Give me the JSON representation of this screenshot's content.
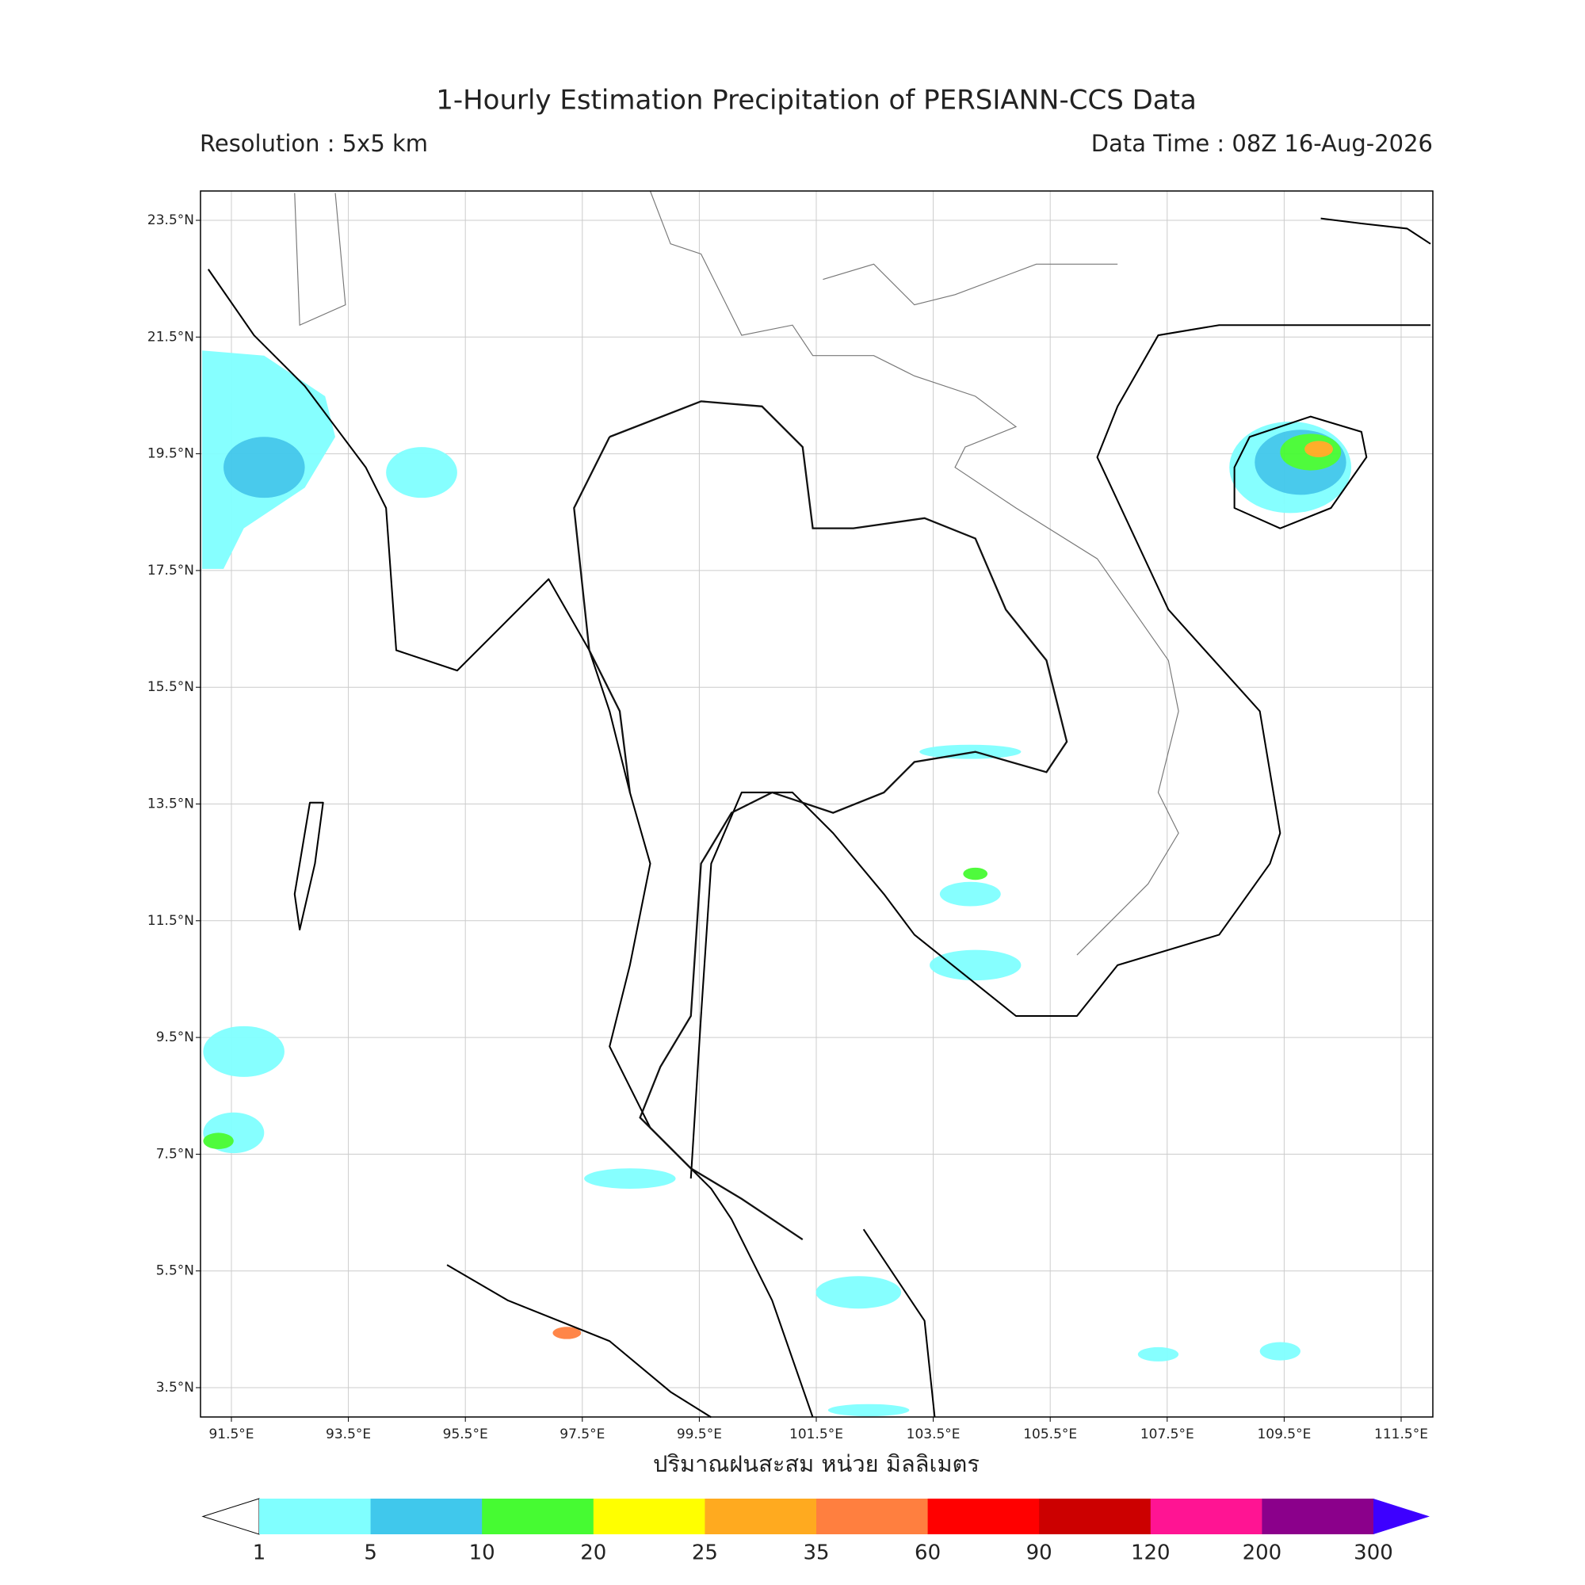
{
  "title": "1-Hourly Estimation Precipitation of PERSIANN-CCS Data",
  "resolution": "Resolution : 5x5 km",
  "data_time": "Data Time : 08Z 16-Aug-2026",
  "lat_labels": [
    "23.5°N",
    "21.5°N",
    "19.5°N",
    "17.5°N",
    "15.5°N",
    "13.5°N",
    "11.5°N",
    "9.5°N",
    "7.5°N",
    "5.5°N",
    "3.5°N"
  ],
  "lon_labels": [
    "91.5°E",
    "93.5°E",
    "95.5°E",
    "97.5°E",
    "99.5°E",
    "101.5°E",
    "103.5°E",
    "105.5°E",
    "107.5°E",
    "109.5°E",
    "111.5°E"
  ],
  "x_axis_label": "ปริมาณฝนสะสม หน่วย มิลลิเมตร",
  "colorbar": {
    "labels": [
      1,
      5,
      10,
      20,
      25,
      35,
      60,
      90,
      120,
      200,
      300
    ],
    "colors": [
      "#80ffff",
      "#40c8ec",
      "#46fb32",
      "#ffff00",
      "#ffaa1f",
      "#ff7f3f",
      "#ff0000",
      "#cc0000",
      "#ff1493",
      "#8b008b"
    ],
    "under_color": "#ffffff",
    "over_color": "#3d00ff"
  }
}
